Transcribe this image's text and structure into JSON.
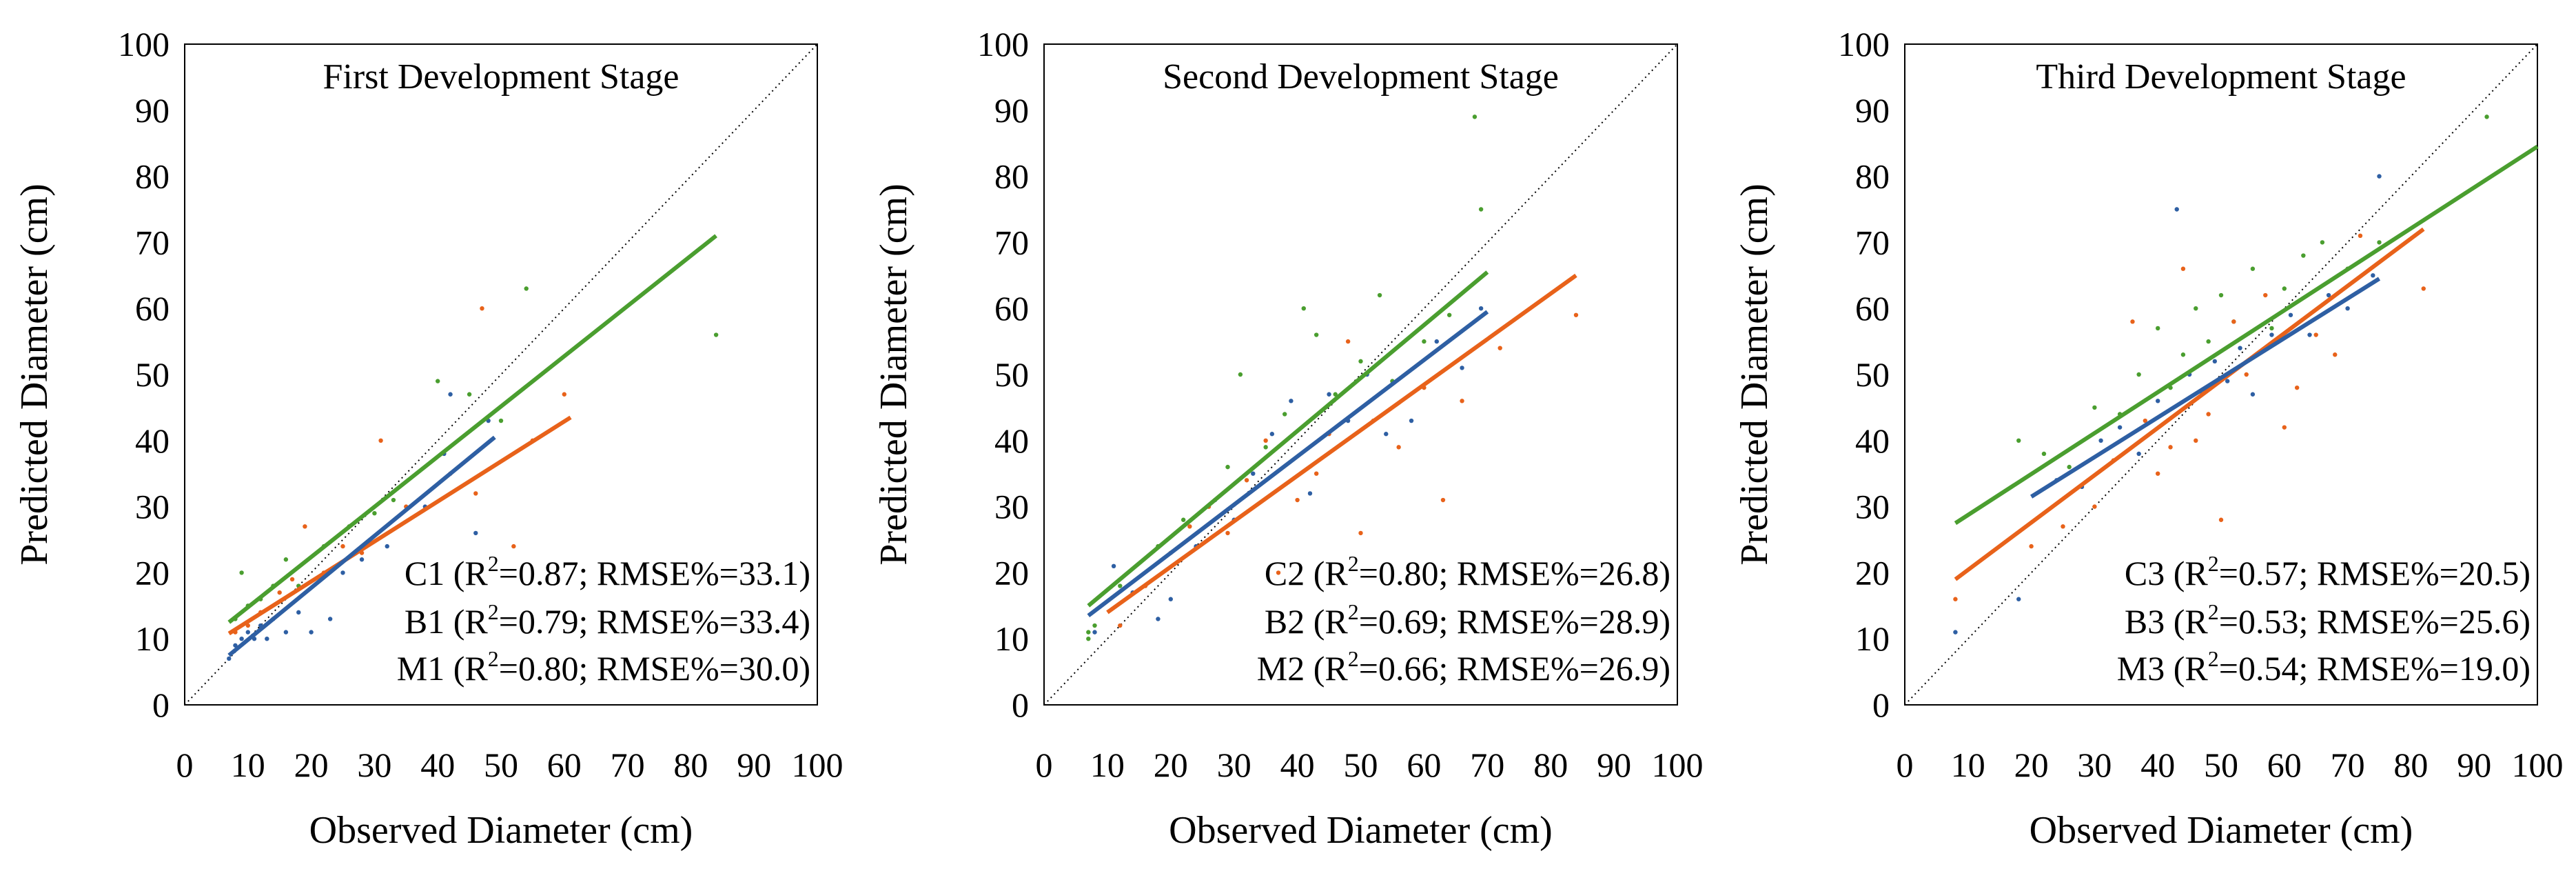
{
  "colors": {
    "C": "#4a9e2f",
    "B": "#e8621a",
    "M": "#2e5fa3",
    "frame": "#000000",
    "diag": "#000000"
  },
  "chart_data": [
    {
      "type": "scatter",
      "title": "First Development Stage",
      "xlabel": "Observed Diameter (cm)",
      "ylabel": "Predicted Diameter (cm)",
      "xlim": [
        0,
        100
      ],
      "ylim": [
        0,
        100
      ],
      "ticks": [
        "0",
        "10",
        "20",
        "30",
        "40",
        "50",
        "60",
        "70",
        "80",
        "90",
        "100"
      ],
      "grid": false,
      "reference_line": "1:1 dotted",
      "series": [
        {
          "name": "C1",
          "color_key": "C",
          "r2": "0.87",
          "rmse": "33.1",
          "fit": [
            [
              7,
              12.5
            ],
            [
              84,
              71
            ]
          ],
          "points": [
            [
              8,
              13
            ],
            [
              9,
              20
            ],
            [
              10,
              15
            ],
            [
              12,
              16
            ],
            [
              14,
              18
            ],
            [
              16,
              22
            ],
            [
              18,
              18
            ],
            [
              22,
              24
            ],
            [
              26,
              27
            ],
            [
              30,
              29
            ],
            [
              33,
              31
            ],
            [
              40,
              49
            ],
            [
              45,
              47
            ],
            [
              50,
              43
            ],
            [
              54,
              63
            ],
            [
              84,
              56
            ]
          ]
        },
        {
          "name": "B1",
          "color_key": "B",
          "r2": "0.79",
          "rmse": "33.4",
          "fit": [
            [
              7,
              10.8
            ],
            [
              61,
              43.5
            ]
          ],
          "points": [
            [
              8,
              11
            ],
            [
              10,
              12
            ],
            [
              12,
              14
            ],
            [
              15,
              17
            ],
            [
              17,
              19
            ],
            [
              19,
              27
            ],
            [
              22,
              20
            ],
            [
              25,
              24
            ],
            [
              28,
              23
            ],
            [
              31,
              40
            ],
            [
              35,
              30
            ],
            [
              42,
              35
            ],
            [
              46,
              32
            ],
            [
              47,
              60
            ],
            [
              52,
              24
            ],
            [
              55,
              40
            ],
            [
              60,
              47
            ]
          ]
        },
        {
          "name": "M1",
          "color_key": "M",
          "r2": "0.80",
          "rmse": "30.0",
          "fit": [
            [
              7,
              7.5
            ],
            [
              49,
              40.5
            ]
          ],
          "points": [
            [
              7,
              7
            ],
            [
              8,
              9
            ],
            [
              9,
              10
            ],
            [
              10,
              11
            ],
            [
              11,
              10
            ],
            [
              12,
              12
            ],
            [
              13,
              10
            ],
            [
              14,
              13
            ],
            [
              16,
              11
            ],
            [
              18,
              14
            ],
            [
              20,
              11
            ],
            [
              23,
              13
            ],
            [
              25,
              20
            ],
            [
              28,
              22
            ],
            [
              32,
              24
            ],
            [
              38,
              30
            ],
            [
              41,
              38
            ],
            [
              42,
              47
            ],
            [
              46,
              26
            ],
            [
              48,
              43
            ]
          ]
        }
      ],
      "annotations": [
        {
          "label": "C1",
          "r2": "0.87",
          "rmse": "33.1"
        },
        {
          "label": "B1",
          "r2": "0.79",
          "rmse": "33.4"
        },
        {
          "label": "M1",
          "r2": "0.80",
          "rmse": "30.0"
        }
      ]
    },
    {
      "type": "scatter",
      "title": "Second Development Stage",
      "xlabel": "Observed Diameter (cm)",
      "ylabel": "Predicted Diameter (cm)",
      "xlim": [
        0,
        100
      ],
      "ylim": [
        0,
        100
      ],
      "ticks": [
        "0",
        "10",
        "20",
        "30",
        "40",
        "50",
        "60",
        "70",
        "80",
        "90",
        "100"
      ],
      "grid": false,
      "reference_line": "1:1 dotted",
      "series": [
        {
          "name": "C2",
          "color_key": "C",
          "r2": "0.80",
          "rmse": "26.8",
          "fit": [
            [
              7,
              15
            ],
            [
              70,
              65.5
            ]
          ],
          "points": [
            [
              7,
              10
            ],
            [
              7,
              11
            ],
            [
              8,
              12
            ],
            [
              12,
              18
            ],
            [
              18,
              24
            ],
            [
              22,
              28
            ],
            [
              26,
              30
            ],
            [
              29,
              36
            ],
            [
              31,
              50
            ],
            [
              35,
              39
            ],
            [
              38,
              44
            ],
            [
              41,
              60
            ],
            [
              43,
              56
            ],
            [
              46,
              47
            ],
            [
              50,
              52
            ],
            [
              53,
              62
            ],
            [
              55,
              49
            ],
            [
              60,
              55
            ],
            [
              64,
              59
            ],
            [
              68,
              89
            ],
            [
              69,
              75
            ]
          ]
        },
        {
          "name": "B2",
          "color_key": "B",
          "r2": "0.69",
          "rmse": "28.9",
          "fit": [
            [
              10,
              14
            ],
            [
              84,
              65
            ]
          ],
          "points": [
            [
              12,
              12
            ],
            [
              16,
              18
            ],
            [
              20,
              23
            ],
            [
              23,
              27
            ],
            [
              26,
              30
            ],
            [
              29,
              26
            ],
            [
              32,
              34
            ],
            [
              35,
              40
            ],
            [
              37,
              20
            ],
            [
              40,
              31
            ],
            [
              43,
              35
            ],
            [
              45,
              41
            ],
            [
              48,
              55
            ],
            [
              50,
              26
            ],
            [
              52,
              43
            ],
            [
              56,
              39
            ],
            [
              60,
              48
            ],
            [
              63,
              31
            ],
            [
              66,
              46
            ],
            [
              72,
              54
            ],
            [
              84,
              59
            ]
          ]
        },
        {
          "name": "M2",
          "color_key": "M",
          "r2": "0.66",
          "rmse": "26.9",
          "fit": [
            [
              7,
              13.5
            ],
            [
              70,
              59.5
            ]
          ],
          "points": [
            [
              8,
              11
            ],
            [
              11,
              21
            ],
            [
              14,
              17
            ],
            [
              18,
              13
            ],
            [
              20,
              16
            ],
            [
              24,
              24
            ],
            [
              27,
              31
            ],
            [
              30,
              28
            ],
            [
              33,
              35
            ],
            [
              36,
              41
            ],
            [
              39,
              46
            ],
            [
              42,
              32
            ],
            [
              45,
              47
            ],
            [
              48,
              43
            ],
            [
              51,
              50
            ],
            [
              54,
              41
            ],
            [
              58,
              43
            ],
            [
              62,
              55
            ],
            [
              66,
              51
            ],
            [
              69,
              60
            ]
          ]
        }
      ],
      "annotations": [
        {
          "label": "C2",
          "r2": "0.80",
          "rmse": "26.8"
        },
        {
          "label": "B2",
          "r2": "0.69",
          "rmse": "28.9"
        },
        {
          "label": "M2",
          "r2": "0.66",
          "rmse": "26.9"
        }
      ]
    },
    {
      "type": "scatter",
      "title": "Third Development Stage",
      "xlabel": "Observed Diameter (cm)",
      "ylabel": "Predicted Diameter (cm)",
      "xlim": [
        0,
        100
      ],
      "ylim": [
        0,
        100
      ],
      "ticks": [
        "0",
        "10",
        "20",
        "30",
        "40",
        "50",
        "60",
        "70",
        "80",
        "90",
        "100"
      ],
      "grid": false,
      "reference_line": "1:1 dotted",
      "series": [
        {
          "name": "C3",
          "color_key": "C",
          "r2": "0.57",
          "rmse": "20.5",
          "fit": [
            [
              8,
              27.5
            ],
            [
              100,
              84.5
            ]
          ],
          "points": [
            [
              18,
              40
            ],
            [
              22,
              38
            ],
            [
              26,
              36
            ],
            [
              30,
              45
            ],
            [
              34,
              44
            ],
            [
              37,
              50
            ],
            [
              40,
              57
            ],
            [
              42,
              48
            ],
            [
              44,
              53
            ],
            [
              46,
              60
            ],
            [
              48,
              55
            ],
            [
              50,
              62
            ],
            [
              52,
              58
            ],
            [
              55,
              66
            ],
            [
              58,
              57
            ],
            [
              60,
              63
            ],
            [
              63,
              68
            ],
            [
              66,
              70
            ],
            [
              70,
              66
            ],
            [
              75,
              70
            ],
            [
              92,
              89
            ]
          ]
        },
        {
          "name": "B3",
          "color_key": "B",
          "r2": "0.53",
          "rmse": "25.6",
          "fit": [
            [
              8,
              19
            ],
            [
              82,
              72
            ]
          ],
          "points": [
            [
              8,
              16
            ],
            [
              20,
              24
            ],
            [
              25,
              27
            ],
            [
              30,
              30
            ],
            [
              33,
              37
            ],
            [
              36,
              58
            ],
            [
              38,
              43
            ],
            [
              40,
              35
            ],
            [
              42,
              39
            ],
            [
              44,
              66
            ],
            [
              46,
              40
            ],
            [
              48,
              44
            ],
            [
              50,
              28
            ],
            [
              52,
              58
            ],
            [
              54,
              50
            ],
            [
              57,
              62
            ],
            [
              60,
              42
            ],
            [
              62,
              48
            ],
            [
              65,
              56
            ],
            [
              68,
              53
            ],
            [
              72,
              71
            ],
            [
              82,
              63
            ]
          ]
        },
        {
          "name": "M3",
          "color_key": "M",
          "r2": "0.54",
          "rmse": "19.0",
          "fit": [
            [
              20,
              31.5
            ],
            [
              75,
              64.5
            ]
          ],
          "points": [
            [
              8,
              11
            ],
            [
              18,
              16
            ],
            [
              24,
              34
            ],
            [
              28,
              33
            ],
            [
              31,
              40
            ],
            [
              34,
              42
            ],
            [
              37,
              38
            ],
            [
              40,
              46
            ],
            [
              43,
              75
            ],
            [
              45,
              50
            ],
            [
              47,
              47
            ],
            [
              49,
              52
            ],
            [
              51,
              49
            ],
            [
              53,
              54
            ],
            [
              55,
              47
            ],
            [
              58,
              56
            ],
            [
              61,
              59
            ],
            [
              64,
              56
            ],
            [
              67,
              62
            ],
            [
              70,
              60
            ],
            [
              74,
              65
            ],
            [
              75,
              80
            ]
          ]
        }
      ],
      "annotations": [
        {
          "label": "C3",
          "r2": "0.57",
          "rmse": "20.5"
        },
        {
          "label": "B3",
          "r2": "0.53",
          "rmse": "25.6"
        },
        {
          "label": "M3",
          "r2": "0.54",
          "rmse": "19.0"
        }
      ]
    }
  ]
}
